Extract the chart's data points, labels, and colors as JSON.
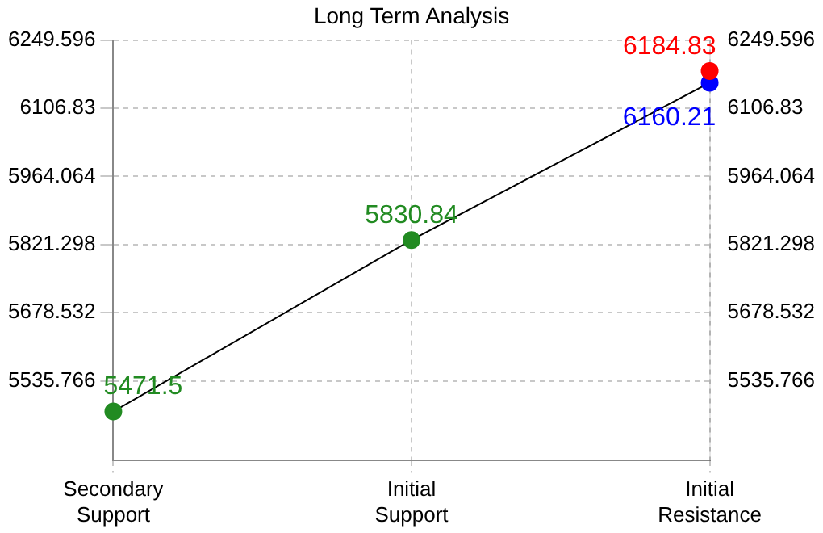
{
  "chart_data": {
    "type": "line",
    "title": "Long Term Analysis",
    "categories": [
      "Secondary Support",
      "Initial Support",
      "Initial Resistance"
    ],
    "series": [
      {
        "type": "line",
        "color": "#000000",
        "colors": [
          "#228b22",
          "#228b22",
          "#0000ff"
        ],
        "values": [
          5471.5,
          5830.84,
          6160.21
        ]
      },
      {
        "type": "scatter",
        "color": "#ff0000",
        "values": [
          null,
          null,
          6184.83
        ]
      }
    ],
    "ylim": [
      5370,
      6249.596
    ],
    "yticks": [
      5535.766,
      5678.532,
      5821.298,
      5964.064,
      6106.83,
      6249.596
    ],
    "y2lim": [
      5370,
      6249.596
    ],
    "y2ticks": [
      5535.766,
      5678.532,
      5821.298,
      5964.064,
      6106.83,
      6249.596
    ],
    "grid": true,
    "marker": "circle",
    "data_labels": true
  }
}
